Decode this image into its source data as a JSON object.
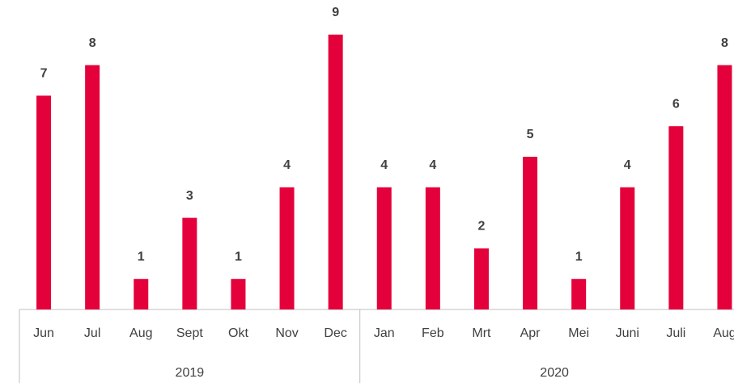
{
  "chart_data": {
    "type": "bar",
    "color": "#e4003a",
    "ylim": [
      0,
      10
    ],
    "groups": [
      {
        "label": "2019",
        "categories": [
          "Jun",
          "Jul",
          "Aug",
          "Sept",
          "Okt",
          "Nov",
          "Dec"
        ],
        "values": [
          7,
          8,
          1,
          3,
          1,
          4,
          9
        ]
      },
      {
        "label": "2020",
        "categories": [
          "Jan",
          "Feb",
          "Mrt",
          "Apr",
          "Mei",
          "Juni",
          "Juli",
          "Aug"
        ],
        "values": [
          4,
          4,
          2,
          5,
          1,
          4,
          6,
          8
        ]
      }
    ]
  }
}
